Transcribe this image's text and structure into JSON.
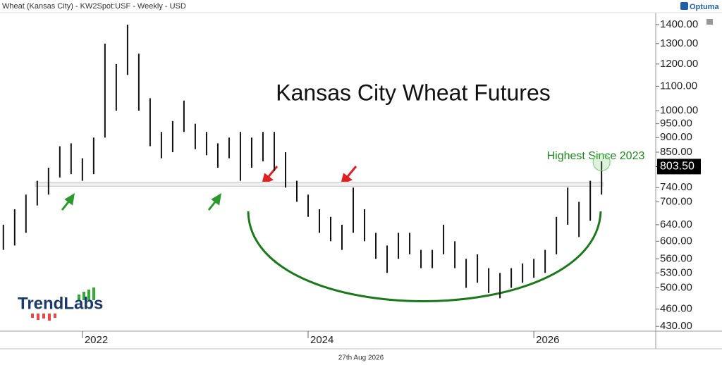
{
  "header": "Wheat (Kansas City) - KW2Spot:USF - Weekly - USD",
  "brand": "Optuma",
  "logo": "TrendLabs",
  "date": "27th Aug 2026",
  "chart_data": {
    "type": "hilo",
    "title": "Kansas City Wheat Futures",
    "annotation": "Highest Since 2023",
    "color": "#111111",
    "log_scale": true,
    "x": [
      2021.3,
      2021.4,
      2021.5,
      2021.6,
      2021.7,
      2021.8,
      2021.9,
      2022.0,
      2022.1,
      2022.2,
      2022.3,
      2022.4,
      2022.5,
      2022.6,
      2022.7,
      2022.8,
      2022.9,
      2023.0,
      2023.1,
      2023.2,
      2023.3,
      2023.4,
      2023.5,
      2023.6,
      2023.7,
      2023.8,
      2023.9,
      2024.0,
      2024.1,
      2024.2,
      2024.3,
      2024.4,
      2024.5,
      2024.6,
      2024.7,
      2024.8,
      2024.9,
      2025.0,
      2025.1,
      2025.2,
      2025.3,
      2025.4,
      2025.5,
      2025.6,
      2025.7,
      2025.8,
      2025.9,
      2026.0,
      2026.1,
      2026.2,
      2026.3,
      2026.4,
      2026.5,
      2026.6
    ],
    "high": [
      640,
      680,
      720,
      760,
      800,
      870,
      880,
      830,
      900,
      1300,
      1200,
      1400,
      1250,
      1050,
      920,
      960,
      1040,
      950,
      920,
      880,
      900,
      920,
      900,
      920,
      920,
      850,
      760,
      720,
      680,
      660,
      640,
      740,
      680,
      620,
      590,
      620,
      620,
      580,
      580,
      640,
      600,
      560,
      570,
      540,
      530,
      540,
      550,
      560,
      580,
      660,
      740,
      700,
      760,
      820
    ],
    "low": [
      580,
      590,
      620,
      690,
      720,
      770,
      780,
      760,
      780,
      900,
      1000,
      1150,
      1000,
      870,
      830,
      850,
      920,
      860,
      840,
      800,
      830,
      760,
      800,
      820,
      790,
      740,
      700,
      660,
      620,
      600,
      580,
      620,
      600,
      560,
      530,
      560,
      570,
      540,
      540,
      570,
      540,
      500,
      510,
      490,
      480,
      500,
      510,
      520,
      530,
      570,
      640,
      610,
      650,
      720
    ],
    "support_level": 750,
    "last_price": {
      "value": 803.5,
      "label": "803.50"
    },
    "xlim": [
      2021.27,
      2027.08
    ],
    "xticks": [
      2022,
      2024,
      2026
    ],
    "ylim": [
      422,
      1467
    ],
    "yticks": [
      {
        "value": 1400,
        "label": "1400.00"
      },
      {
        "value": 1300,
        "label": "1300.00"
      },
      {
        "value": 1200,
        "label": "1200.00"
      },
      {
        "value": 1100,
        "label": "1100.00"
      },
      {
        "value": 1000,
        "label": "1000.00"
      },
      {
        "value": 950,
        "label": "950.00"
      },
      {
        "value": 900,
        "label": "900.00"
      },
      {
        "value": 850,
        "label": "850.00"
      },
      {
        "value": 740,
        "label": "740.00"
      },
      {
        "value": 700,
        "label": "700.00"
      },
      {
        "value": 640,
        "label": "640.00"
      },
      {
        "value": 600,
        "label": "600.00"
      },
      {
        "value": 560,
        "label": "560.00"
      },
      {
        "value": 530,
        "label": "530.00"
      },
      {
        "value": 500,
        "label": "500.00"
      },
      {
        "value": 460,
        "label": "460.00"
      },
      {
        "value": 430,
        "label": "430.00"
      }
    ]
  }
}
